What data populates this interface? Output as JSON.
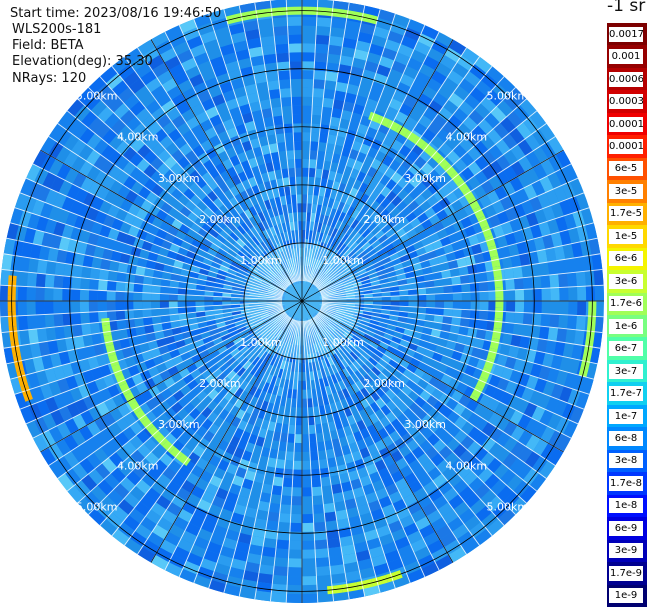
{
  "header": {
    "start_time": "Start time: 2023/08/16 19:46:50",
    "device": "WLS200s-181",
    "field": "Field: BETA",
    "elevation": "Elevation(deg): 35.30",
    "nrays": "NRays: 120"
  },
  "units_label": "-1 sr",
  "chart_data": {
    "type": "heatmap",
    "projection": "polar-ppi",
    "field": "BETA",
    "elevation_deg": 35.3,
    "n_rays": 120,
    "grid": true,
    "range_rings_km": [
      1.0,
      2.0,
      3.0,
      4.0,
      5.0
    ],
    "range_ring_labels": [
      "1.00km",
      "2.00km",
      "3.00km",
      "4.00km",
      "5.00km"
    ],
    "max_range_km": 5.2,
    "azimuth_spokes_deg": [
      0,
      30,
      60,
      90,
      120,
      150,
      180,
      210,
      240,
      270,
      300,
      330
    ],
    "dominant_value": "3e-8 to 1.7e-7",
    "features": [
      {
        "type": "ring",
        "range_km": 3.4,
        "value": "1.7e-6",
        "azimuth_from_deg": 20,
        "azimuth_to_deg": 120
      },
      {
        "type": "ring",
        "range_km": 3.4,
        "value": "1.7e-6",
        "azimuth_from_deg": 215,
        "azimuth_to_deg": 265
      },
      {
        "type": "ring",
        "range_km": 5.0,
        "value": "1.7e-5",
        "azimuth_from_deg": 250,
        "azimuth_to_deg": 275
      },
      {
        "type": "ring",
        "range_km": 5.0,
        "value": "1.7e-6",
        "azimuth_from_deg": 345,
        "azimuth_to_deg": 15
      },
      {
        "type": "ring",
        "range_km": 5.0,
        "value": "3e-6",
        "azimuth_from_deg": 160,
        "azimuth_to_deg": 175
      },
      {
        "type": "ring",
        "range_km": 5.0,
        "value": "1.7e-6",
        "azimuth_from_deg": 90,
        "azimuth_to_deg": 105
      }
    ],
    "colorbar": {
      "labels": [
        "0.0017",
        "0.001",
        "0.0006",
        "0.0003",
        "0.00017",
        "0.0001",
        "6e-5",
        "3e-5",
        "1.7e-5",
        "1e-5",
        "6e-6",
        "3e-6",
        "1.7e-6",
        "1e-6",
        "6e-7",
        "3e-7",
        "1.7e-7",
        "1e-7",
        "6e-8",
        "3e-8",
        "1.7e-8",
        "1e-8",
        "6e-9",
        "3e-9",
        "1.7e-9",
        "1e-9"
      ],
      "colors": [
        "#7d0000",
        "#960000",
        "#b40000",
        "#d20000",
        "#f00000",
        "#ff2000",
        "#ff5000",
        "#ff8000",
        "#ffb000",
        "#ffd800",
        "#f4f400",
        "#c8ff30",
        "#a0ff58",
        "#78ff80",
        "#50ffa8",
        "#30f0d0",
        "#10d0f0",
        "#00a8ff",
        "#0088ff",
        "#0060ff",
        "#0038ff",
        "#0010ff",
        "#0000e0",
        "#0000b8",
        "#000090",
        "#000070"
      ]
    }
  }
}
